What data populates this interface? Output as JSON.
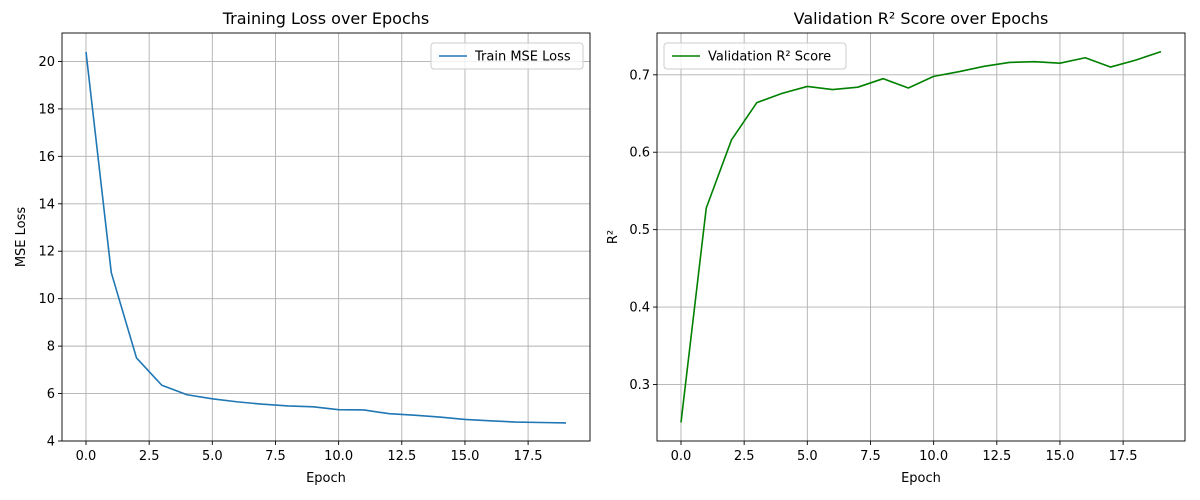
{
  "chart_data": [
    {
      "type": "line",
      "title": "Training Loss over Epochs",
      "xlabel": "Epoch",
      "ylabel": "MSE Loss",
      "xlim": [
        -0.95,
        19.95
      ],
      "ylim": [
        4,
        21.2
      ],
      "xticks": [
        0.0,
        2.5,
        5.0,
        7.5,
        10.0,
        12.5,
        15.0,
        17.5
      ],
      "xtick_labels": [
        "0.0",
        "2.5",
        "5.0",
        "7.5",
        "10.0",
        "12.5",
        "15.0",
        "17.5"
      ],
      "yticks": [
        4,
        6,
        8,
        10,
        12,
        14,
        16,
        18,
        20
      ],
      "ytick_labels": [
        "4",
        "6",
        "8",
        "10",
        "12",
        "14",
        "16",
        "18",
        "20"
      ],
      "grid": true,
      "legend_position": "top-right",
      "series": [
        {
          "name": "Train MSE Loss",
          "color": "#1f77b4",
          "x": [
            0,
            1,
            2,
            3,
            4,
            5,
            6,
            7,
            8,
            9,
            10,
            11,
            12,
            13,
            14,
            15,
            16,
            17,
            18,
            19
          ],
          "y": [
            20.4,
            11.1,
            7.5,
            6.35,
            5.95,
            5.78,
            5.65,
            5.55,
            5.48,
            5.44,
            5.32,
            5.31,
            5.15,
            5.09,
            5.01,
            4.91,
            4.85,
            4.8,
            4.78,
            4.76
          ]
        }
      ]
    },
    {
      "type": "line",
      "title": "Validation R² Score over Epochs",
      "xlabel": "Epoch",
      "ylabel": "R²",
      "xlim": [
        -0.95,
        19.95
      ],
      "ylim": [
        0.227,
        0.754
      ],
      "xticks": [
        0.0,
        2.5,
        5.0,
        7.5,
        10.0,
        12.5,
        15.0,
        17.5
      ],
      "xtick_labels": [
        "0.0",
        "2.5",
        "5.0",
        "7.5",
        "10.0",
        "12.5",
        "15.0",
        "17.5"
      ],
      "yticks": [
        0.3,
        0.4,
        0.5,
        0.6,
        0.7
      ],
      "ytick_labels": [
        "0.3",
        "0.4",
        "0.5",
        "0.6",
        "0.7"
      ],
      "grid": true,
      "legend_position": "top-left",
      "series": [
        {
          "name": "Validation R² Score",
          "color": "#008000",
          "x": [
            0,
            1,
            2,
            3,
            4,
            5,
            6,
            7,
            8,
            9,
            10,
            11,
            12,
            13,
            14,
            15,
            16,
            17,
            18,
            19
          ],
          "y": [
            0.251,
            0.528,
            0.616,
            0.664,
            0.676,
            0.685,
            0.681,
            0.684,
            0.695,
            0.683,
            0.698,
            0.704,
            0.711,
            0.716,
            0.717,
            0.715,
            0.722,
            0.71,
            0.719,
            0.73
          ]
        }
      ]
    }
  ]
}
